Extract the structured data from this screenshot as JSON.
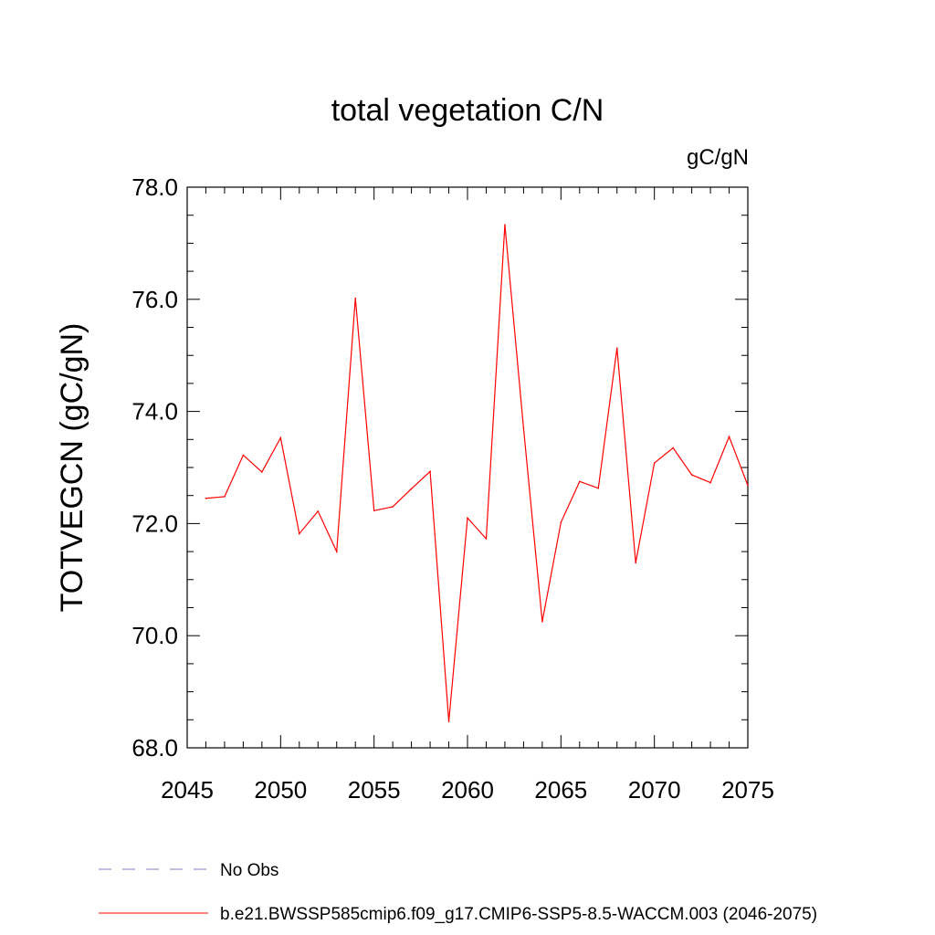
{
  "chart_data": {
    "type": "line",
    "title": "total vegetation C/N",
    "units_label": "gC/gN",
    "ylabel": "TOTVEGCN  (gC/gN)",
    "xlabel": "",
    "xlim": [
      2045,
      2075
    ],
    "ylim": [
      68.0,
      78.0
    ],
    "x_ticks": [
      "2045",
      "2050",
      "2055",
      "2060",
      "2065",
      "2070",
      "2075"
    ],
    "y_ticks": [
      "68.0",
      "70.0",
      "72.0",
      "74.0",
      "76.0",
      "78.0"
    ],
    "series": [
      {
        "name": "b.e21.BWSSP585cmip6.f09_g17.CMIP6-SSP5-8.5-WACCM.003 (2046-2075)",
        "color": "#ff0000",
        "style": "solid",
        "x": [
          2046,
          2047,
          2048,
          2049,
          2050,
          2051,
          2052,
          2053,
          2054,
          2055,
          2056,
          2057,
          2058,
          2059,
          2060,
          2061,
          2062,
          2063,
          2064,
          2065,
          2066,
          2067,
          2068,
          2069,
          2070,
          2071,
          2072,
          2073,
          2074,
          2075
        ],
        "values": [
          72.45,
          72.48,
          73.22,
          72.92,
          73.53,
          71.82,
          72.22,
          71.5,
          76.02,
          72.23,
          72.3,
          72.62,
          72.93,
          68.47,
          72.1,
          71.73,
          77.33,
          73.7,
          70.25,
          72.02,
          72.75,
          72.63,
          75.13,
          71.3,
          73.08,
          73.35,
          72.87,
          72.73,
          73.55,
          72.68
        ]
      }
    ],
    "legend": [
      {
        "label": "No Obs",
        "color": "#7f7fcc",
        "style": "dashed"
      },
      {
        "label": "b.e21.BWSSP585cmip6.f09_g17.CMIP6-SSP5-8.5-WACCM.003 (2046-2075)",
        "color": "#ff0000",
        "style": "solid"
      }
    ],
    "legend_placement": "bottom-left",
    "grid": false
  }
}
